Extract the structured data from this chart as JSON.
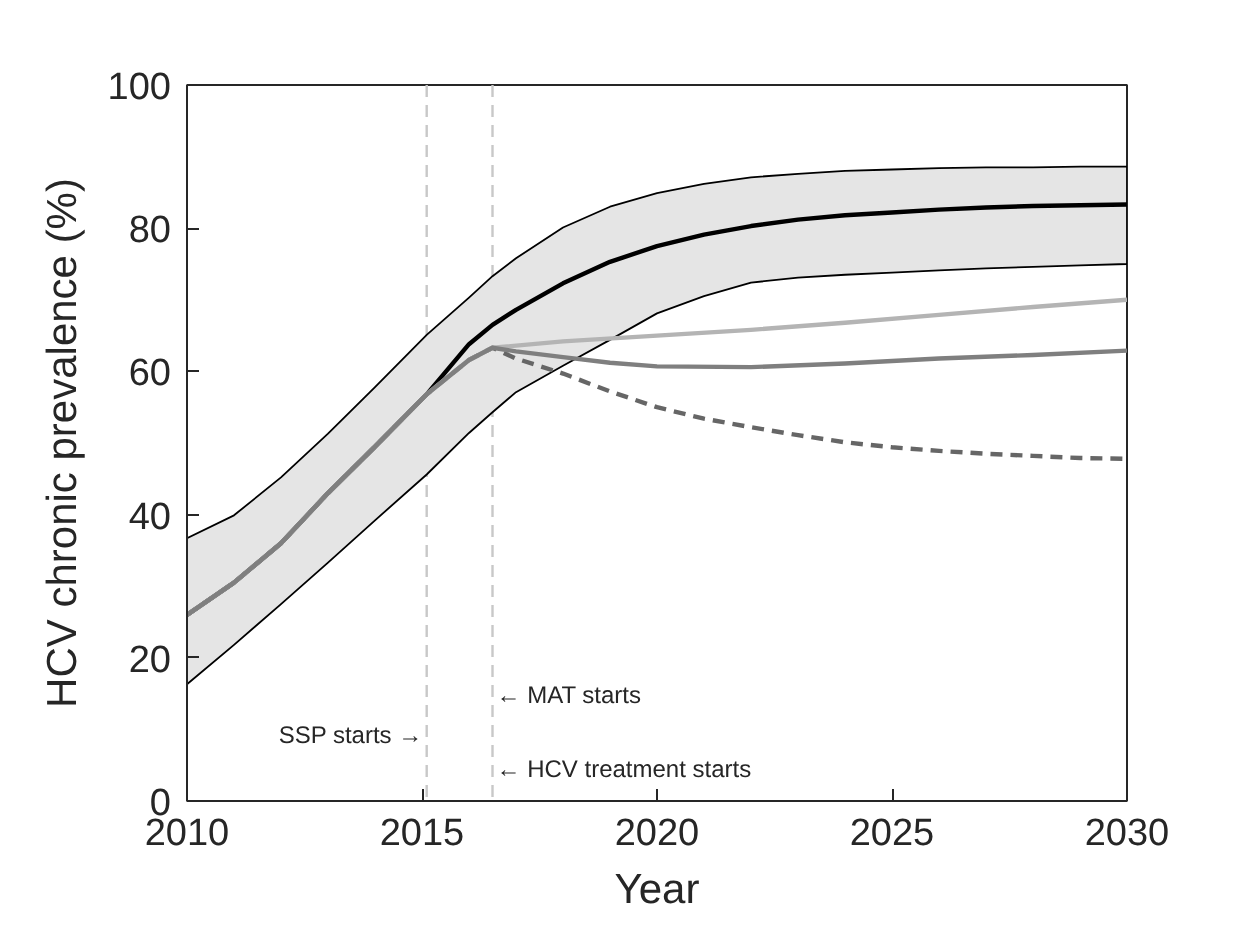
{
  "chart_data": {
    "type": "line",
    "xlabel": "Year",
    "ylabel": "HCV chronic prevalence (%)",
    "xlim": [
      2010,
      2030
    ],
    "ylim": [
      0,
      100
    ],
    "xticks": [
      2010,
      2015,
      2020,
      2025,
      2030
    ],
    "yticks": [
      0,
      20,
      40,
      60,
      80,
      100
    ],
    "line_style": "solid",
    "ref_lines": [
      {
        "axis": "x",
        "value": 2015.1,
        "color": "#c8c8c8",
        "line_style": "dashed"
      },
      {
        "axis": "x",
        "value": 2016.5,
        "color": "#c8c8c8",
        "line_style": "dashed"
      }
    ],
    "annotations": [
      "SSP starts →",
      "← MAT starts",
      "← HCV treatment starts"
    ],
    "series": [
      {
        "color": "#000000",
        "x": [
          2010,
          2011,
          2012,
          2013,
          2014,
          2015.1,
          2016,
          2016.5,
          2017,
          2018,
          2019,
          2020,
          2021,
          2022,
          2023,
          2024,
          2025,
          2026,
          2027,
          2028,
          2029,
          2030
        ],
        "values": [
          26,
          30.5,
          36,
          43,
          49.5,
          56.8,
          63.8,
          66.5,
          68.6,
          72.3,
          75.3,
          77.5,
          79.1,
          80.3,
          81.2,
          81.8,
          82.2,
          82.6,
          82.9,
          83.1,
          83.2,
          83.3
        ],
        "lower": [
          16.3,
          21.8,
          27.5,
          33.3,
          39.2,
          45.6,
          51.4,
          54.3,
          57.1,
          60.8,
          64.4,
          68.1,
          70.5,
          72.4,
          73.1,
          73.5,
          73.8,
          74.1,
          74.4,
          74.6,
          74.8,
          75
        ],
        "upper": [
          36.7,
          39.9,
          45.2,
          51.3,
          57.8,
          65.1,
          70.3,
          73.3,
          75.8,
          80.1,
          83,
          84.9,
          86.2,
          87.1,
          87.6,
          88,
          88.2,
          88.4,
          88.5,
          88.5,
          88.6,
          88.6
        ]
      },
      {
        "color": "#666666",
        "line_style": "dashed",
        "x": [
          2010,
          2011,
          2012,
          2013,
          2014,
          2015.1,
          2016,
          2016.5,
          2017,
          2018,
          2019,
          2020,
          2021,
          2022,
          2023,
          2024,
          2025,
          2026,
          2027,
          2028,
          2029,
          2030
        ],
        "values": [
          26,
          30.5,
          36,
          43,
          49.5,
          56.8,
          61.6,
          63.3,
          61.8,
          59.7,
          57.2,
          55,
          53.4,
          52.2,
          51.1,
          50.1,
          49.4,
          48.9,
          48.5,
          48.2,
          47.9,
          47.8
        ]
      },
      {
        "color": "#b4b4b4",
        "x": [
          2010,
          2011,
          2012,
          2013,
          2014,
          2015.1,
          2016,
          2016.5,
          2018,
          2020,
          2022,
          2024,
          2026,
          2028,
          2030
        ],
        "values": [
          26,
          30.5,
          36,
          43,
          49.5,
          56.8,
          61.6,
          63.3,
          64.2,
          65,
          65.8,
          66.8,
          67.9,
          69,
          70
        ]
      },
      {
        "color": "#7f7f7f",
        "x": [
          2010,
          2011,
          2012,
          2013,
          2014,
          2015.1,
          2016,
          2016.5,
          2017,
          2018,
          2019,
          2020,
          2022,
          2024,
          2026,
          2028,
          2030
        ],
        "values": [
          26,
          30.5,
          36,
          43,
          49.5,
          56.8,
          61.6,
          63.3,
          62.8,
          62,
          61.2,
          60.7,
          60.6,
          61.1,
          61.8,
          62.3,
          62.9
        ]
      }
    ]
  }
}
